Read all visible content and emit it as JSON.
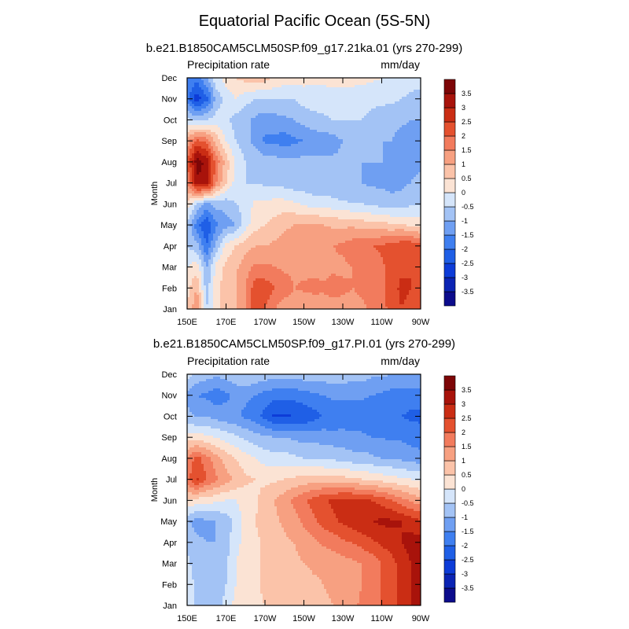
{
  "figure_title": "Equatorial Pacific Ocean (5S-5N)",
  "chart_data": [
    {
      "type": "heatmap",
      "title": "b.e21.B1850CAM5CLM50SP.f09_g17.21ka.01 (yrs 270-299)",
      "left_label": "Precipitation rate",
      "right_label": "mm/day",
      "ylabel": "Month",
      "x_ticks": [
        "150E",
        "170E",
        "170W",
        "150W",
        "130W",
        "110W",
        "90W"
      ],
      "y_ticks": [
        "Jan",
        "Feb",
        "Mar",
        "Apr",
        "May",
        "Jun",
        "Jul",
        "Aug",
        "Sep",
        "Oct",
        "Nov",
        "Dec"
      ],
      "x": [
        150,
        155,
        160,
        165,
        170,
        175,
        180,
        185,
        190,
        195,
        200,
        205,
        210,
        215,
        220,
        225,
        230,
        235,
        240,
        245,
        250,
        255,
        260,
        265,
        270
      ],
      "values": [
        [
          0.5,
          1.5,
          -0.5,
          0.3,
          0.8,
          1.0,
          1.5,
          2.3,
          2.0,
          1.5,
          1.2,
          1.2,
          1.0,
          1.0,
          1.2,
          1.3,
          1.3,
          1.3,
          1.4,
          1.6,
          1.8,
          2.2,
          2.5,
          2.4,
          2.5
        ],
        [
          0.3,
          1.0,
          -0.8,
          0.3,
          0.8,
          1.0,
          1.5,
          2.3,
          2.3,
          2.0,
          1.8,
          1.5,
          1.6,
          1.7,
          1.6,
          1.7,
          1.6,
          1.5,
          1.6,
          1.7,
          1.9,
          2.3,
          2.6,
          2.5,
          2.4
        ],
        [
          0.0,
          0.3,
          -1.0,
          0.2,
          0.6,
          0.9,
          1.3,
          1.6,
          1.6,
          1.5,
          1.4,
          1.4,
          1.3,
          1.3,
          1.3,
          1.4,
          1.4,
          1.5,
          1.6,
          1.6,
          1.9,
          2.2,
          2.4,
          2.5,
          2.4
        ],
        [
          -0.5,
          -0.8,
          -2.0,
          -0.8,
          0.2,
          0.5,
          0.8,
          1.0,
          1.0,
          1.1,
          1.2,
          1.3,
          1.4,
          1.5,
          1.5,
          1.5,
          1.6,
          1.8,
          1.9,
          2.0,
          2.1,
          2.2,
          2.4,
          2.4,
          2.2
        ],
        [
          -0.6,
          -1.8,
          -2.5,
          -1.6,
          -1.2,
          -1.0,
          -0.2,
          0.3,
          0.5,
          0.7,
          0.9,
          1.0,
          1.1,
          1.1,
          1.0,
          0.9,
          0.9,
          0.9,
          0.8,
          0.7,
          0.7,
          0.6,
          0.6,
          0.4,
          0.3
        ],
        [
          0.3,
          -0.5,
          -1.2,
          -0.8,
          -0.8,
          -0.5,
          -0.3,
          0.1,
          0.1,
          0.2,
          0.2,
          0.1,
          -0.1,
          -0.2,
          -0.2,
          -0.3,
          -0.4,
          -0.5,
          -0.5,
          -0.6,
          -0.7,
          -0.8,
          -0.8,
          -0.6,
          -0.5
        ],
        [
          1.5,
          3.3,
          3.5,
          1.5,
          0.5,
          -0.2,
          -0.5,
          -0.5,
          -0.6,
          -0.6,
          -0.7,
          -0.8,
          -0.8,
          -0.9,
          -0.9,
          -1.0,
          -1.0,
          -1.0,
          -1.0,
          -1.1,
          -1.1,
          -1.2,
          -1.1,
          -1.0,
          -0.8
        ],
        [
          2.0,
          3.8,
          3.3,
          1.8,
          0.8,
          -0.1,
          -0.5,
          -0.6,
          -0.8,
          -0.8,
          -0.8,
          -0.9,
          -0.8,
          -0.9,
          -0.9,
          -0.9,
          -0.9,
          -1.0,
          -1.0,
          -1.0,
          -1.0,
          -1.1,
          -1.1,
          -1.2,
          -1.2
        ],
        [
          1.2,
          2.2,
          1.8,
          0.8,
          0.0,
          -0.5,
          -0.8,
          -1.2,
          -1.6,
          -1.6,
          -1.8,
          -1.6,
          -1.5,
          -1.3,
          -1.3,
          -1.2,
          -1.0,
          -1.0,
          -1.0,
          -1.0,
          -1.0,
          -1.0,
          -1.2,
          -1.3,
          -1.2
        ],
        [
          -0.4,
          -0.7,
          -0.5,
          -0.3,
          -0.4,
          -0.7,
          -0.9,
          -1.1,
          -1.3,
          -1.2,
          -1.1,
          -1.0,
          -0.8,
          -0.7,
          -0.6,
          -0.5,
          -0.5,
          -0.5,
          -0.5,
          -0.6,
          -0.7,
          -0.8,
          -0.9,
          -1.0,
          -1.0
        ],
        [
          -1.8,
          -2.8,
          -2.2,
          -0.8,
          -0.3,
          0.0,
          -0.3,
          -0.5,
          -0.5,
          -0.5,
          -0.5,
          -0.5,
          -0.3,
          -0.2,
          -0.2,
          -0.2,
          -0.3,
          -0.3,
          -0.4,
          -0.4,
          -0.4,
          -0.4,
          -0.5,
          -0.6,
          -0.7
        ],
        [
          -1.5,
          -1.8,
          -1.0,
          -0.2,
          0.2,
          0.5,
          0.7,
          0.8,
          0.7,
          0.4,
          0.3,
          0.2,
          0.2,
          0.1,
          0.1,
          0.2,
          0.2,
          0.2,
          0.2,
          0.1,
          0.0,
          -0.1,
          -0.2,
          -0.3,
          -0.3
        ]
      ],
      "colorbar": {
        "levels": [
          "-3.5",
          "-3",
          "-2.5",
          "-2",
          "-1.5",
          "-1",
          "-0.5",
          "0",
          "0.5",
          "1",
          "1.5",
          "2",
          "2.5",
          "3",
          "3.5"
        ]
      }
    },
    {
      "type": "heatmap",
      "title": "b.e21.B1850CAM5CLM50SP.f09_g17.PI.01 (yrs 270-299)",
      "left_label": "Precipitation rate",
      "right_label": "mm/day",
      "ylabel": "Month",
      "x_ticks": [
        "150E",
        "170E",
        "170W",
        "150W",
        "130W",
        "110W",
        "90W"
      ],
      "y_ticks": [
        "Jan",
        "Feb",
        "Mar",
        "Apr",
        "May",
        "Jun",
        "Jul",
        "Aug",
        "Sep",
        "Oct",
        "Nov",
        "Dec"
      ],
      "x": [
        150,
        155,
        160,
        165,
        170,
        175,
        180,
        185,
        190,
        195,
        200,
        205,
        210,
        215,
        220,
        225,
        230,
        235,
        240,
        245,
        250,
        255,
        260,
        265,
        270
      ],
      "values": [
        [
          -0.3,
          -0.6,
          -0.6,
          -0.6,
          -0.4,
          0.2,
          0.4,
          0.4,
          0.5,
          0.6,
          0.7,
          0.7,
          0.8,
          0.8,
          0.9,
          1.0,
          1.1,
          1.4,
          1.6,
          1.8,
          2.0,
          2.3,
          2.6,
          3.0,
          3.3
        ],
        [
          -0.3,
          -0.6,
          -0.7,
          -0.8,
          -0.5,
          0.0,
          0.3,
          0.4,
          0.6,
          0.6,
          0.7,
          0.8,
          0.8,
          0.9,
          1.0,
          1.1,
          1.2,
          1.3,
          1.5,
          1.8,
          2.0,
          2.3,
          2.6,
          3.0,
          3.3
        ],
        [
          -0.4,
          -0.7,
          -0.8,
          -0.9,
          -0.6,
          0.0,
          0.3,
          0.4,
          0.6,
          0.7,
          0.8,
          0.9,
          1.0,
          1.1,
          1.1,
          1.2,
          1.3,
          1.4,
          1.5,
          1.7,
          2.0,
          2.3,
          2.7,
          3.0,
          3.2
        ],
        [
          -0.6,
          -0.9,
          -1.0,
          -1.0,
          -0.7,
          -0.2,
          0.2,
          0.4,
          0.6,
          0.7,
          0.9,
          1.0,
          1.2,
          1.4,
          1.6,
          1.7,
          1.9,
          2.0,
          2.2,
          2.4,
          2.6,
          2.8,
          3.0,
          3.2,
          3.2
        ],
        [
          -0.9,
          -1.2,
          -1.1,
          -1.0,
          -0.8,
          -0.3,
          0.2,
          0.5,
          0.7,
          0.9,
          1.1,
          1.3,
          1.6,
          1.9,
          2.2,
          2.4,
          2.6,
          2.8,
          2.9,
          3.0,
          3.1,
          3.1,
          3.0,
          2.8,
          2.6
        ],
        [
          0.5,
          0.3,
          0.2,
          0.1,
          0.0,
          0.0,
          0.2,
          0.4,
          0.7,
          1.0,
          1.3,
          1.6,
          1.9,
          2.2,
          2.4,
          2.6,
          2.7,
          2.7,
          2.6,
          2.5,
          2.3,
          2.0,
          1.7,
          1.4,
          1.2
        ],
        [
          1.8,
          2.6,
          2.0,
          1.6,
          1.2,
          0.9,
          0.6,
          0.5,
          0.4,
          0.4,
          0.5,
          0.6,
          0.7,
          0.8,
          0.8,
          0.7,
          0.7,
          0.6,
          0.5,
          0.4,
          0.3,
          0.2,
          0.1,
          0.0,
          -0.1
        ],
        [
          1.6,
          2.2,
          1.7,
          1.2,
          0.8,
          0.5,
          0.2,
          0.0,
          -0.2,
          -0.3,
          -0.3,
          -0.4,
          -0.5,
          -0.5,
          -0.6,
          -0.6,
          -0.7,
          -0.8,
          -0.8,
          -0.9,
          -1.0,
          -1.0,
          -1.1,
          -1.2,
          -1.3
        ],
        [
          0.2,
          0.3,
          0.1,
          0.0,
          -0.2,
          -0.4,
          -0.6,
          -0.8,
          -0.9,
          -1.0,
          -1.0,
          -1.1,
          -1.2,
          -1.2,
          -1.2,
          -1.3,
          -1.3,
          -1.4,
          -1.4,
          -1.5,
          -1.5,
          -1.6,
          -1.6,
          -1.7,
          -1.8
        ],
        [
          -0.8,
          -1.1,
          -1.0,
          -1.2,
          -1.3,
          -1.4,
          -1.6,
          -1.8,
          -2.2,
          -2.6,
          -2.6,
          -2.5,
          -2.4,
          -2.2,
          -2.0,
          -1.9,
          -1.8,
          -1.8,
          -1.8,
          -1.9,
          -2.0,
          -2.0,
          -2.0,
          -2.1,
          -2.1
        ],
        [
          -1.2,
          -1.5,
          -1.6,
          -1.8,
          -1.6,
          -1.4,
          -1.4,
          -1.5,
          -1.7,
          -1.8,
          -1.8,
          -1.8,
          -1.7,
          -1.6,
          -1.5,
          -1.4,
          -1.4,
          -1.4,
          -1.4,
          -1.5,
          -1.6,
          -1.7,
          -1.7,
          -1.8,
          -1.8
        ],
        [
          -0.3,
          -0.6,
          -0.8,
          -0.9,
          -0.8,
          -0.6,
          -0.5,
          -0.6,
          -0.7,
          -0.8,
          -0.8,
          -0.8,
          -0.7,
          -0.7,
          -0.7,
          -0.7,
          -0.7,
          -0.8,
          -0.8,
          -0.9,
          -0.9,
          -1.0,
          -1.0,
          -1.0,
          -1.0
        ]
      ],
      "colorbar": {
        "levels": [
          "-3.5",
          "-3",
          "-2.5",
          "-2",
          "-1.5",
          "-1",
          "-0.5",
          "0",
          "0.5",
          "1",
          "1.5",
          "2",
          "2.5",
          "3",
          "3.5"
        ]
      }
    }
  ],
  "palette": [
    "#0c0c8c",
    "#0b24b4",
    "#0d3cd8",
    "#1f5fe6",
    "#3f7ff0",
    "#6f9ff2",
    "#a3c3f5",
    "#d5e5fa",
    "#fbe3d4",
    "#fbc3a9",
    "#f7a081",
    "#f27b5d",
    "#e4512f",
    "#ca2d14",
    "#a8130b",
    "#7d0607"
  ]
}
